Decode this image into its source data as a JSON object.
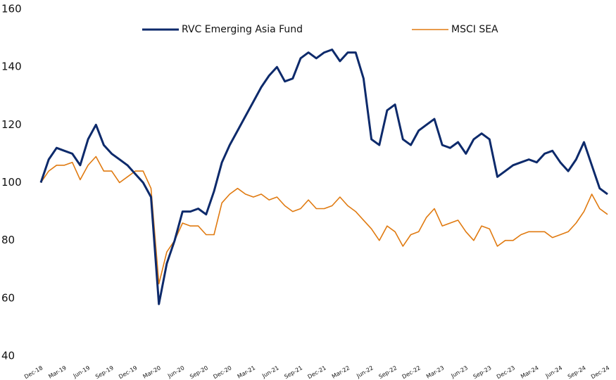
{
  "chart_data": {
    "type": "line",
    "categories": [
      "Dec-18",
      null,
      null,
      "Mar-19",
      null,
      null,
      "Jun-19",
      null,
      null,
      "Sep-19",
      null,
      null,
      "Dec-19",
      null,
      null,
      "Mar-20",
      null,
      null,
      "Jun-20",
      null,
      null,
      "Sep-20",
      null,
      null,
      "Dec-20",
      null,
      null,
      "Mar-21",
      null,
      null,
      "Jun-21",
      null,
      null,
      "Sep-21",
      null,
      null,
      "Dec-21",
      null,
      null,
      "Mar-22",
      null,
      null,
      "Jun-22",
      null,
      null,
      "Sep-22",
      null,
      null,
      "Dec-22",
      null,
      null,
      "Mar-23",
      null,
      null,
      "Jun-23",
      null,
      null,
      "Sep-23",
      null,
      null,
      "Dec-23",
      null,
      null,
      "Mar-24",
      null,
      null,
      "Jun-24",
      null,
      null,
      "Sep-24",
      null,
      null,
      "Dec-24"
    ],
    "series": [
      {
        "name": "RVC Emerging Asia Fund",
        "color": "#0d2a6b",
        "values": [
          100,
          108,
          112,
          111,
          110,
          106,
          115,
          120,
          113,
          110,
          108,
          106,
          103,
          100,
          95,
          58,
          72,
          80,
          90,
          90,
          91,
          89,
          97,
          107,
          113,
          118,
          123,
          128,
          133,
          137,
          140,
          135,
          136,
          143,
          145,
          143,
          145,
          146,
          142,
          145,
          145,
          136,
          115,
          113,
          125,
          127,
          115,
          113,
          118,
          120,
          122,
          113,
          112,
          114,
          110,
          115,
          117,
          115,
          102,
          104,
          106,
          107,
          108,
          107,
          110,
          111,
          107,
          104,
          108,
          114,
          106,
          98,
          96
        ]
      },
      {
        "name": "MSCI SEA",
        "color": "#e07a10",
        "values": [
          100,
          104,
          106,
          106,
          107,
          101,
          106,
          109,
          104,
          104,
          100,
          102,
          104,
          104,
          98,
          65,
          76,
          80,
          86,
          85,
          85,
          82,
          82,
          93,
          96,
          98,
          96,
          95,
          96,
          94,
          95,
          92,
          90,
          91,
          94,
          91,
          91,
          92,
          95,
          92,
          90,
          87,
          84,
          80,
          85,
          83,
          78,
          82,
          83,
          88,
          91,
          85,
          86,
          87,
          83,
          80,
          85,
          84,
          78,
          80,
          80,
          82,
          83,
          83,
          83,
          81,
          82,
          83,
          86,
          90,
          96,
          91,
          89
        ]
      }
    ],
    "ylim": [
      40,
      160
    ],
    "yticks": [
      40,
      60,
      80,
      100,
      120,
      140,
      160
    ],
    "grid": false,
    "legend": "top"
  }
}
